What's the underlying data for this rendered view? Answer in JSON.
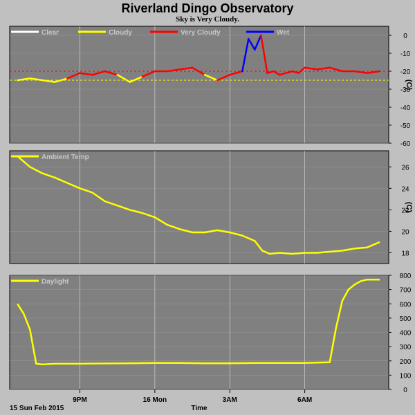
{
  "title": "Riverland Dingo Observatory",
  "subtitle": "Sky is Very Cloudy.",
  "date_label": "15 Sun Feb 2015",
  "x_axis_title": "Time",
  "x_ticks": [
    "9PM",
    "16 Mon",
    "3AM",
    "6AM"
  ],
  "colors": {
    "background": "#c0c0c0",
    "plot_bg": "#808080",
    "clear": "#ffffff",
    "cloudy": "#ffff00",
    "very_cloudy": "#ff0000",
    "wet": "#0000ff",
    "temp": "#ffff00",
    "daylight": "#ffff00"
  },
  "chart_data": [
    {
      "type": "line",
      "panel": "sky",
      "legend": [
        {
          "label": "Clear",
          "color": "#ffffff"
        },
        {
          "label": "Cloudy",
          "color": "#ffff00"
        },
        {
          "label": "Very Cloudy",
          "color": "#ff0000"
        },
        {
          "label": "Wet",
          "color": "#0000ff"
        }
      ],
      "ylabel": "(C)",
      "ylim": [
        -60,
        5
      ],
      "yticks": [
        0,
        -10,
        -20,
        -30,
        -40,
        -50,
        -60
      ],
      "thresholds": [
        {
          "value": -20,
          "color": "#ff0000"
        },
        {
          "value": -25,
          "color": "#ffff00"
        }
      ],
      "x_hours": [
        18.5,
        19.0,
        19.5,
        20.0,
        20.5,
        21.0,
        21.5,
        22.0,
        22.5,
        23.0,
        23.5,
        24.0,
        24.5,
        25.0,
        25.5,
        26.0,
        26.5,
        27.0,
        27.25,
        27.5,
        27.75,
        28.0,
        28.25,
        28.5,
        28.75,
        29.0,
        29.25,
        29.5,
        29.75,
        30.0,
        30.5,
        31.0,
        31.5,
        32.0,
        32.5,
        33.0
      ],
      "values": [
        -25,
        -24,
        -25,
        -26,
        -24,
        -21,
        -22,
        -20,
        -22,
        -26,
        -23,
        -20,
        -20,
        -19,
        -18,
        -22,
        -25,
        -22,
        -21,
        -20,
        -2,
        -8,
        0,
        -21,
        -20,
        -22,
        -21,
        -20,
        -21,
        -18,
        -19,
        -18,
        -20,
        -20,
        -21,
        -20
      ],
      "status": [
        "Cloudy",
        "Cloudy",
        "Cloudy",
        "Cloudy",
        "Cloudy",
        "Very Cloudy",
        "Very Cloudy",
        "Very Cloudy",
        "Very Cloudy",
        "Cloudy",
        "Cloudy",
        "Very Cloudy",
        "Very Cloudy",
        "Very Cloudy",
        "Very Cloudy",
        "Very Cloudy",
        "Cloudy",
        "Very Cloudy",
        "Very Cloudy",
        "Very Cloudy",
        "Wet",
        "Wet",
        "Wet",
        "Very Cloudy",
        "Very Cloudy",
        "Very Cloudy",
        "Very Cloudy",
        "Very Cloudy",
        "Very Cloudy",
        "Very Cloudy",
        "Very Cloudy",
        "Very Cloudy",
        "Very Cloudy",
        "Very Cloudy",
        "Very Cloudy",
        "Very Cloudy"
      ]
    },
    {
      "type": "line",
      "panel": "temp",
      "series": [
        {
          "name": "Ambient Temp",
          "color": "#ffff00"
        }
      ],
      "ylabel": "(C)",
      "ylim": [
        17,
        27.5
      ],
      "yticks": [
        18,
        20,
        22,
        24,
        26
      ],
      "x_hours": [
        18.5,
        19.0,
        19.5,
        20.0,
        20.5,
        21.0,
        21.5,
        22.0,
        22.5,
        23.0,
        23.5,
        24.0,
        24.5,
        25.0,
        25.5,
        26.0,
        26.5,
        27.0,
        27.5,
        28.0,
        28.3,
        28.6,
        29.0,
        29.5,
        30.0,
        30.5,
        31.0,
        31.5,
        32.0,
        32.5,
        33.0
      ],
      "values": [
        27.0,
        26.0,
        25.4,
        25.0,
        24.5,
        24.0,
        23.6,
        22.8,
        22.4,
        22.0,
        21.7,
        21.3,
        20.6,
        20.2,
        19.9,
        19.9,
        20.1,
        19.9,
        19.6,
        19.1,
        18.2,
        17.9,
        18.0,
        17.9,
        18.0,
        18.0,
        18.1,
        18.2,
        18.4,
        18.5,
        19.0
      ]
    },
    {
      "type": "line",
      "panel": "daylight",
      "series": [
        {
          "name": "Daylight",
          "color": "#ffff00"
        }
      ],
      "ylim": [
        0,
        800
      ],
      "yticks": [
        0,
        100,
        200,
        300,
        400,
        500,
        600,
        700,
        800
      ],
      "x_hours": [
        18.5,
        18.75,
        19.0,
        19.25,
        19.5,
        20.0,
        21.0,
        22.0,
        23.0,
        24.0,
        25.0,
        26.0,
        27.0,
        28.0,
        29.0,
        30.0,
        31.0,
        31.25,
        31.5,
        31.75,
        32.0,
        32.25,
        32.5,
        33.0
      ],
      "values": [
        600,
        530,
        420,
        180,
        175,
        180,
        180,
        182,
        183,
        185,
        185,
        183,
        183,
        185,
        185,
        185,
        190,
        430,
        620,
        700,
        735,
        760,
        770,
        770
      ]
    }
  ]
}
